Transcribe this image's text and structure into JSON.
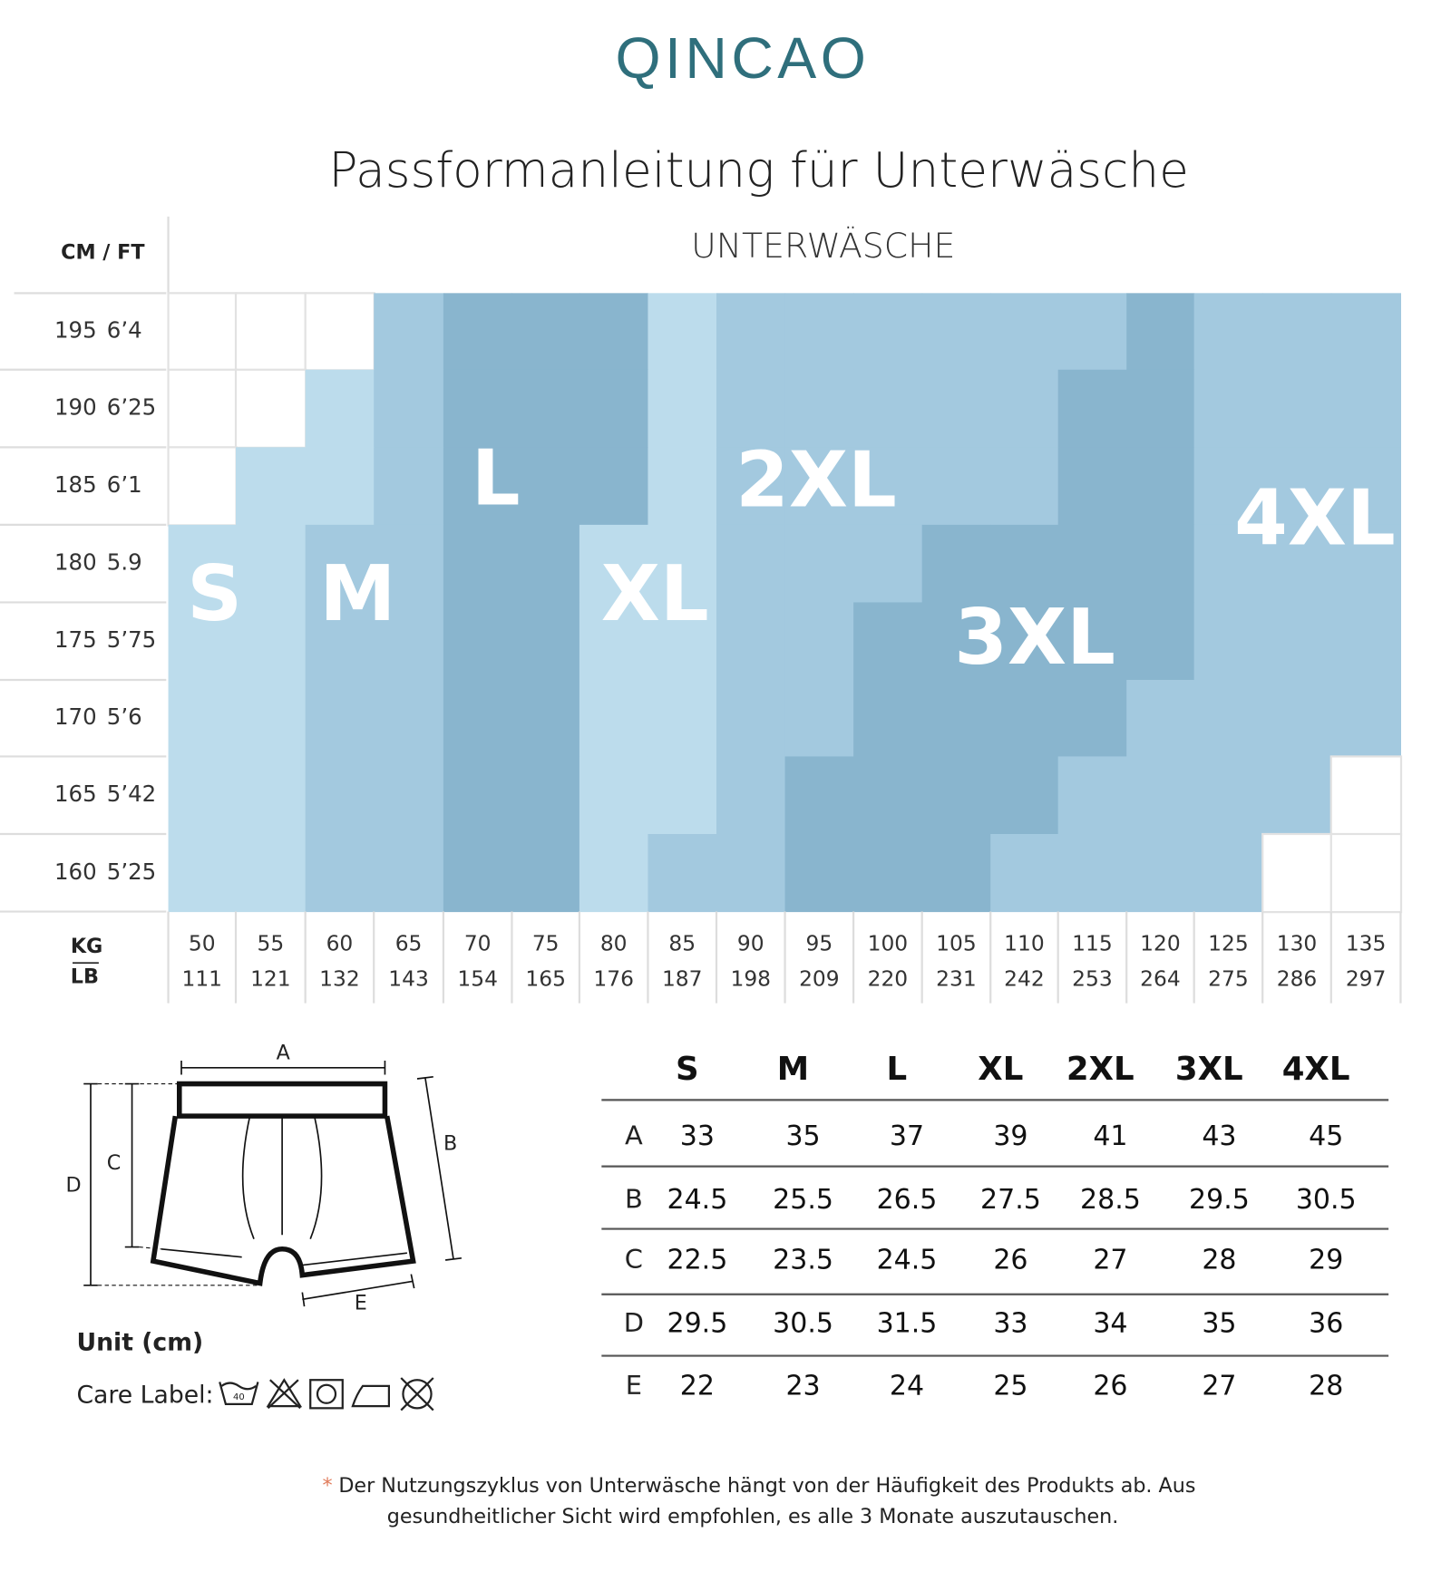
{
  "header": {
    "brand": "QINCAO",
    "title": "Passformanleitung für Unterwäsche"
  },
  "grid": {
    "corner_label": "CM / FT",
    "heading": "UNTERWÄSCHE",
    "heights": [
      {
        "cm": 195,
        "ft": "6’4"
      },
      {
        "cm": 190,
        "ft": "6’25"
      },
      {
        "cm": 185,
        "ft": "6’1"
      },
      {
        "cm": 180,
        "ft": "5.9"
      },
      {
        "cm": 175,
        "ft": "5’75"
      },
      {
        "cm": 170,
        "ft": "5’6"
      },
      {
        "cm": 165,
        "ft": "5’42"
      },
      {
        "cm": 160,
        "ft": "5’25"
      }
    ],
    "weight_label_kg": "KG",
    "weight_label_lb": "LB",
    "weights": [
      {
        "kg": 50,
        "lb": 111
      },
      {
        "kg": 55,
        "lb": 121
      },
      {
        "kg": 60,
        "lb": 132
      },
      {
        "kg": 65,
        "lb": 143
      },
      {
        "kg": 70,
        "lb": 154
      },
      {
        "kg": 75,
        "lb": 165
      },
      {
        "kg": 80,
        "lb": 176
      },
      {
        "kg": 85,
        "lb": 187
      },
      {
        "kg": 90,
        "lb": 198
      },
      {
        "kg": 95,
        "lb": 209
      },
      {
        "kg": 100,
        "lb": 220
      },
      {
        "kg": 105,
        "lb": 231
      },
      {
        "kg": 110,
        "lb": 242
      },
      {
        "kg": 115,
        "lb": 253
      },
      {
        "kg": 120,
        "lb": 264
      },
      {
        "kg": 125,
        "lb": 275
      },
      {
        "kg": 130,
        "lb": 286
      },
      {
        "kg": 135,
        "lb": 297
      }
    ],
    "sizes": [
      "S",
      "M",
      "L",
      "XL",
      "2XL",
      "3XL",
      "4XL"
    ]
  },
  "diagram": {
    "labels": [
      "A",
      "B",
      "C",
      "D",
      "E"
    ],
    "unit": "Unit (cm)",
    "care_label": "Care Label:",
    "wash_temp": "40"
  },
  "table": {
    "header": [
      "S",
      "M",
      "L",
      "XL",
      "2XL",
      "3XL",
      "4XL"
    ],
    "rows": [
      {
        "label": "A",
        "values": [
          33,
          35,
          37,
          39,
          41,
          43,
          45
        ]
      },
      {
        "label": "B",
        "values": [
          24.5,
          25.5,
          26.5,
          27.5,
          28.5,
          29.5,
          30.5
        ]
      },
      {
        "label": "C",
        "values": [
          22.5,
          23.5,
          24.5,
          26,
          27,
          28,
          29
        ]
      },
      {
        "label": "D",
        "values": [
          29.5,
          30.5,
          31.5,
          33,
          34,
          35,
          36
        ]
      },
      {
        "label": "E",
        "values": [
          22,
          23,
          24,
          25,
          26,
          27,
          28
        ]
      }
    ]
  },
  "footnote": {
    "marker": "*",
    "lines": [
      "Der Nutzungszyklus von Unterwäsche hängt von der Häufigkeit des Produkts ab. Aus",
      "gesundheitlicher Sicht wird empfohlen, es alle 3 Monate auszutauschen."
    ]
  }
}
